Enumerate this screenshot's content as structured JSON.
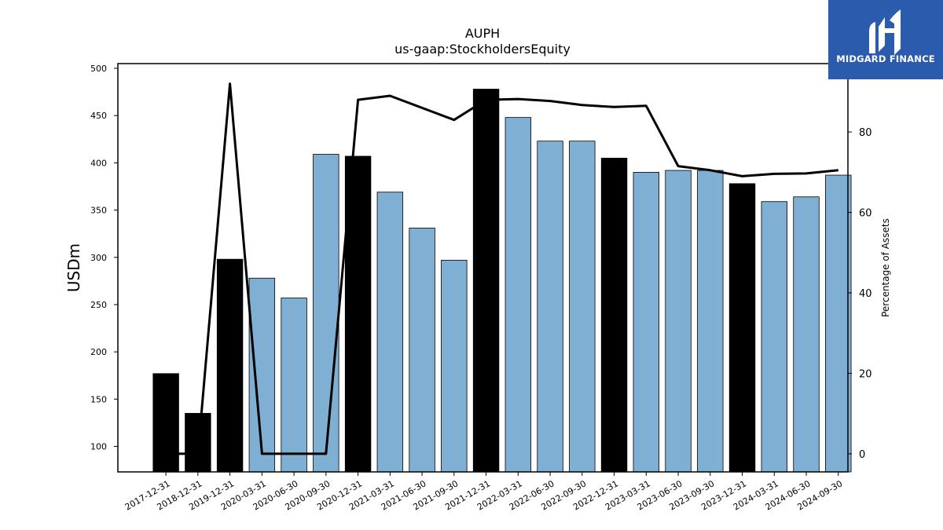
{
  "chart_data": {
    "type": "bar",
    "title": "AUPH",
    "subtitle": "us-gaap:StockholdersEquity",
    "ylabel": "USDm",
    "y2label": "Percentage of Assets",
    "ylim": [
      73,
      505
    ],
    "y2lim": [
      -4.5,
      97
    ],
    "yticks": [
      100,
      150,
      200,
      250,
      300,
      350,
      400,
      450,
      500
    ],
    "y2ticks": [
      0,
      20,
      40,
      60,
      80
    ],
    "categories": [
      "2017-12-31",
      "2018-12-31",
      "2019-12-31",
      "2020-03-31",
      "2020-06-30",
      "2020-09-30",
      "2020-12-31",
      "2021-03-31",
      "2021-06-30",
      "2021-09-30",
      "2021-12-31",
      "2022-03-31",
      "2022-06-30",
      "2022-09-30",
      "2022-12-31",
      "2023-03-31",
      "2023-06-30",
      "2023-09-30",
      "2023-12-31",
      "2024-03-31",
      "2024-06-30",
      "2024-09-30"
    ],
    "series": [
      {
        "kind": "bar",
        "values": [
          177,
          135,
          298,
          278,
          257,
          409,
          407,
          369,
          331,
          297,
          478,
          448,
          423,
          423,
          405,
          390,
          392,
          392,
          378,
          359,
          364,
          387
        ],
        "colors": [
          "#000000",
          "#000000",
          "#000000",
          "#7fb0d3",
          "#7fb0d3",
          "#7fb0d3",
          "#000000",
          "#7fb0d3",
          "#7fb0d3",
          "#7fb0d3",
          "#000000",
          "#7fb0d3",
          "#7fb0d3",
          "#7fb0d3",
          "#000000",
          "#7fb0d3",
          "#7fb0d3",
          "#7fb0d3",
          "#000000",
          "#7fb0d3",
          "#7fb0d3",
          "#7fb0d3"
        ]
      },
      {
        "kind": "line",
        "axis": "right",
        "color": "#000000",
        "values": [
          0,
          0,
          92,
          0,
          0,
          0,
          88,
          89,
          86,
          83,
          88,
          88.2,
          87.7,
          86.7,
          86.2,
          86.5,
          71.5,
          70.5,
          69,
          69.6,
          69.7,
          70.5
        ]
      }
    ]
  },
  "watermark": {
    "text": "MIDGARD FINANCE",
    "background": "#2b5bad"
  }
}
